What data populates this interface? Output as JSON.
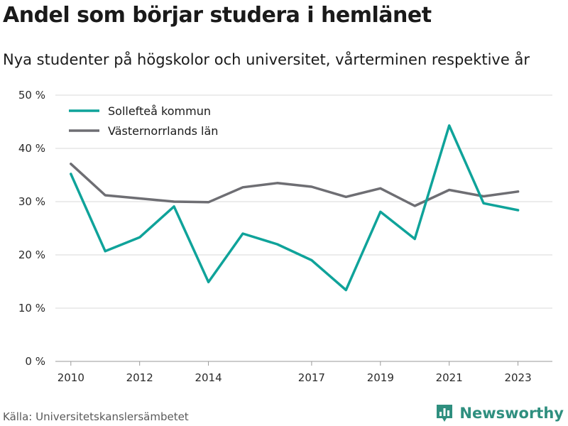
{
  "header": {
    "title": "Andel som börjar studera i hemlänet",
    "subtitle": "Nya studenter på högskolor och universitet, vårterminen respektive år"
  },
  "footer": {
    "source": "Källa: Universitetskanslersämbetet",
    "brand": "Newsworthy",
    "brand_icon": "bar-chart-logo-icon"
  },
  "colors": {
    "sollefteå": "#0fa39a",
    "västernorrland": "#6e6e73",
    "brand": "#2f8f7f",
    "grid": "#d9d9d9"
  },
  "chart_data": {
    "type": "line",
    "title": "Andel som börjar studera i hemlänet",
    "subtitle": "Nya studenter på högskolor och universitet, vårterminen respektive år",
    "xlabel": "",
    "ylabel": "",
    "x": [
      2010,
      2011,
      2012,
      2013,
      2014,
      2015,
      2016,
      2017,
      2018,
      2019,
      2020,
      2021,
      2022,
      2023
    ],
    "x_ticks": [
      "2010",
      "2012",
      "2014",
      "2017",
      "2019",
      "2021",
      "2023"
    ],
    "y_ticks": [
      "0 %",
      "10 %",
      "20 %",
      "30 %",
      "40 %",
      "50 %"
    ],
    "ylim": [
      0,
      50
    ],
    "grid": true,
    "legend_position": "top-left",
    "series": [
      {
        "name": "Sollefteå kommun",
        "color": "#0fa39a",
        "values": [
          35.2,
          20.7,
          23.3,
          29.1,
          14.9,
          24.0,
          22.0,
          19.0,
          13.4,
          28.1,
          23.0,
          44.3,
          29.7,
          28.4
        ]
      },
      {
        "name": "Västernorrlands län",
        "color": "#6e6e73",
        "values": [
          37.1,
          31.2,
          30.6,
          30.0,
          29.9,
          32.7,
          33.5,
          32.8,
          30.9,
          32.5,
          29.2,
          32.2,
          31.0,
          31.9
        ]
      }
    ]
  }
}
